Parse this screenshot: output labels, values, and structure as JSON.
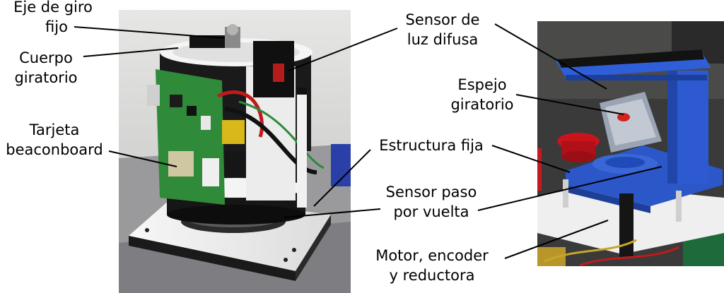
{
  "labels": {
    "eje_giro": [
      "Eje de giro",
      "fijo"
    ],
    "cuerpo_giratorio": [
      "Cuerpo",
      "giratorio"
    ],
    "tarjeta": [
      "Tarjeta",
      "beaconboard"
    ],
    "sensor_luz": [
      "Sensor de",
      "luz difusa"
    ],
    "espejo": [
      "Espejo",
      "giratorio"
    ],
    "estructura": [
      "Estructura fija"
    ],
    "sensor_paso": [
      "Sensor paso",
      "por vuelta"
    ],
    "motor": [
      "Motor, encoder",
      "y reductora"
    ]
  },
  "colors": {
    "left_bg": "#d8d8d6",
    "right_bg": "#3a3a3a",
    "blue_part": "#2c57c9",
    "pcb_green": "#2f8a3a",
    "plate_white": "#f2f2f2",
    "body_black": "#151515",
    "red_button": "#c9141c"
  }
}
